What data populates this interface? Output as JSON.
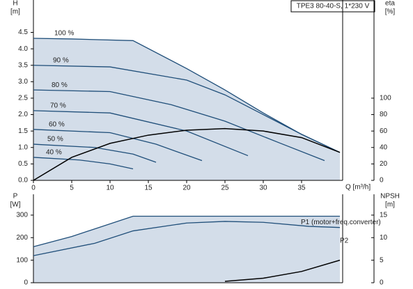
{
  "chart_data": [
    {
      "type": "line",
      "box_label": "TPE3 80-40-S, 1*230 V",
      "ylabel": "H",
      "yunit": "[m]",
      "y2label": "eta",
      "y2unit": "[%]",
      "xlabel": "Q [m³/h]",
      "xlim": [
        0,
        40
      ],
      "ylim": [
        0,
        5.4
      ],
      "y2lim": [
        0,
        216
      ],
      "xticks": [
        0,
        5,
        10,
        15,
        20,
        25,
        30,
        35
      ],
      "yticks": [
        {
          "value": 0,
          "label": "0.0"
        },
        {
          "value": 0.5,
          "label": "0.5"
        },
        {
          "value": 1,
          "label": "1.0"
        },
        {
          "value": 1.5,
          "label": "1.5"
        },
        {
          "value": 2,
          "label": "2.0"
        },
        {
          "value": 2.5,
          "label": "2.5"
        },
        {
          "value": 3,
          "label": "3.0"
        },
        {
          "value": 3.5,
          "label": "3.5"
        },
        {
          "value": 4,
          "label": "4.0"
        },
        {
          "value": 4.5,
          "label": "4.5"
        }
      ],
      "y2ticks": [
        0,
        20,
        40,
        60,
        80,
        100
      ],
      "series": [
        {
          "name": "100 %",
          "color": "#1f4e79",
          "x": [
            0,
            5,
            13,
            20,
            25,
            30,
            35,
            40
          ],
          "values": [
            4.32,
            4.3,
            4.25,
            3.4,
            2.75,
            2.05,
            1.4,
            0.85
          ]
        },
        {
          "name": "90 %",
          "color": "#1f4e79",
          "x": [
            0,
            10,
            20,
            25,
            30,
            35,
            40
          ],
          "values": [
            3.5,
            3.45,
            3.05,
            2.6,
            2.0,
            1.4,
            0.85
          ]
        },
        {
          "name": "80 %",
          "color": "#1f4e79",
          "x": [
            0,
            10,
            18,
            25,
            32,
            38
          ],
          "values": [
            2.75,
            2.7,
            2.3,
            1.8,
            1.15,
            0.6
          ]
        },
        {
          "name": "70 %",
          "color": "#1f4e79",
          "x": [
            0,
            10,
            20,
            28
          ],
          "values": [
            2.12,
            2.05,
            1.5,
            0.75
          ]
        },
        {
          "name": "60 %",
          "color": "#1f4e79",
          "x": [
            0,
            10,
            16,
            22
          ],
          "values": [
            1.55,
            1.45,
            1.1,
            0.6
          ]
        },
        {
          "name": "50 %",
          "color": "#1f4e79",
          "x": [
            0,
            8,
            13,
            16
          ],
          "values": [
            1.1,
            1.0,
            0.8,
            0.55
          ]
        },
        {
          "name": "40 %",
          "color": "#1f4e79",
          "x": [
            0,
            6,
            10,
            13
          ],
          "values": [
            0.7,
            0.62,
            0.5,
            0.35
          ]
        },
        {
          "color": "#000000",
          "axis": "y2",
          "x": [
            0,
            5,
            10,
            15,
            20,
            25,
            30,
            35,
            40
          ],
          "values": [
            0,
            28,
            45,
            55,
            61,
            63,
            60,
            52,
            34
          ]
        }
      ]
    },
    {
      "type": "line",
      "ylabel": "P",
      "yunit": "[W]",
      "y2label": "NPSH",
      "y2unit": "[m]",
      "xlim": [
        0,
        40
      ],
      "ylim": [
        0,
        380
      ],
      "y2lim": [
        0,
        19
      ],
      "yticks": [
        0,
        100,
        200,
        300
      ],
      "y2ticks": [
        0,
        5,
        10,
        15
      ],
      "series": [
        {
          "name": "P1 (motor+freq.converter)",
          "color": "#1f4e79",
          "x": [
            0,
            5,
            13,
            40
          ],
          "values": [
            160,
            205,
            295,
            295
          ]
        },
        {
          "name": "P2",
          "color": "#1f4e79",
          "x": [
            0,
            8,
            13,
            20,
            25,
            30,
            36,
            40
          ],
          "values": [
            120,
            175,
            230,
            265,
            272,
            268,
            250,
            245
          ]
        },
        {
          "color": "#000000",
          "axis": "y2",
          "x": [
            25,
            30,
            35,
            40
          ],
          "values": [
            0.3,
            1,
            2.5,
            5
          ]
        }
      ]
    }
  ]
}
